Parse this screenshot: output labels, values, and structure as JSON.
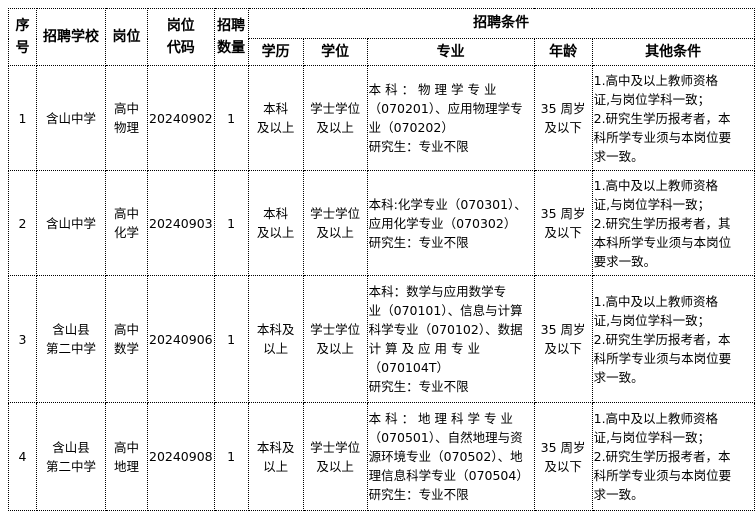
{
  "header": {
    "seq": "序号",
    "school": "招聘学校",
    "post": "岗位",
    "code": "岗位代码",
    "count": "招聘数量",
    "conditions": "招聘条件",
    "education": "学历",
    "degree": "学位",
    "major": "专业",
    "age": "年龄",
    "other": "其他条件"
  },
  "rows": [
    {
      "seq": "1",
      "school": [
        "含山中学"
      ],
      "post": [
        "高中",
        "物理"
      ],
      "code": "20240902",
      "count": "1",
      "education": [
        "本科",
        "及以上"
      ],
      "degree": [
        "学士学位",
        "及以上"
      ],
      "major": [
        "本 科 ： 物 理 学 专 业",
        "（070201）、应用物理学专",
        "业（070202）",
        "研究生：专业不限"
      ],
      "age": [
        "35 周岁",
        "及以下"
      ],
      "other": [
        "1.高中及以上教师资格",
        "证,与岗位学科一致；",
        "2.研究生学历报考者，本",
        "科所学专业须与本岗位要",
        "求一致。"
      ]
    },
    {
      "seq": "2",
      "school": [
        "含山中学"
      ],
      "post": [
        "高中",
        "化学"
      ],
      "code": "20240903",
      "count": "1",
      "education": [
        "本科",
        "及以上"
      ],
      "degree": [
        "学士学位",
        "及以上"
      ],
      "major": [
        "本科:化学专业（070301）、",
        "应用化学专业（070302）",
        "研究生：专业不限"
      ],
      "age": [
        "35 周岁",
        "及以下"
      ],
      "other": [
        "1.高中及以上教师资格",
        "证,与岗位学科一致；",
        "2.研究生学历报考者，其",
        "本科所学专业须与本岗位",
        "要求一致。"
      ]
    },
    {
      "seq": "3",
      "school": [
        "含山县",
        "第二中学"
      ],
      "post": [
        "高中",
        "数学"
      ],
      "code": "20240906",
      "count": "1",
      "education": [
        "本科及",
        "以上"
      ],
      "degree": [
        "学士学位",
        "及以上"
      ],
      "major": [
        "本科：数学与应用数学专",
        "业（070101）、信息与计算",
        "科学专业（070102）、数据",
        "计 算 及 应 用 专 业",
        "（070104T）",
        "研究生：专业不限"
      ],
      "age": [
        "35 周岁",
        "及以下"
      ],
      "other": [
        "1.高中及以上教师资格",
        "证,与岗位学科一致；",
        "2.研究生学历报考者，本",
        "科所学专业须与本岗位要",
        "求一致。"
      ]
    },
    {
      "seq": "4",
      "school": [
        "含山县",
        "第二中学"
      ],
      "post": [
        "高中",
        "地理"
      ],
      "code": "20240908",
      "count": "1",
      "education": [
        "本科及",
        "以上"
      ],
      "degree": [
        "学士学位",
        "及以上"
      ],
      "major": [
        "本 科 ： 地 理 科 学 专 业",
        "（070501）、自然地理与资",
        "源环境专业（070502）、地",
        "理信息科学专业（070504）",
        "研究生：专业不限"
      ],
      "age": [
        "35 周岁",
        "及以下"
      ],
      "other": [
        "1.高中及以上教师资格",
        "证,与岗位学科一致；",
        "2.研究生学历报考者，本",
        "科所学专业须与本岗位要",
        "求一致。"
      ]
    }
  ]
}
